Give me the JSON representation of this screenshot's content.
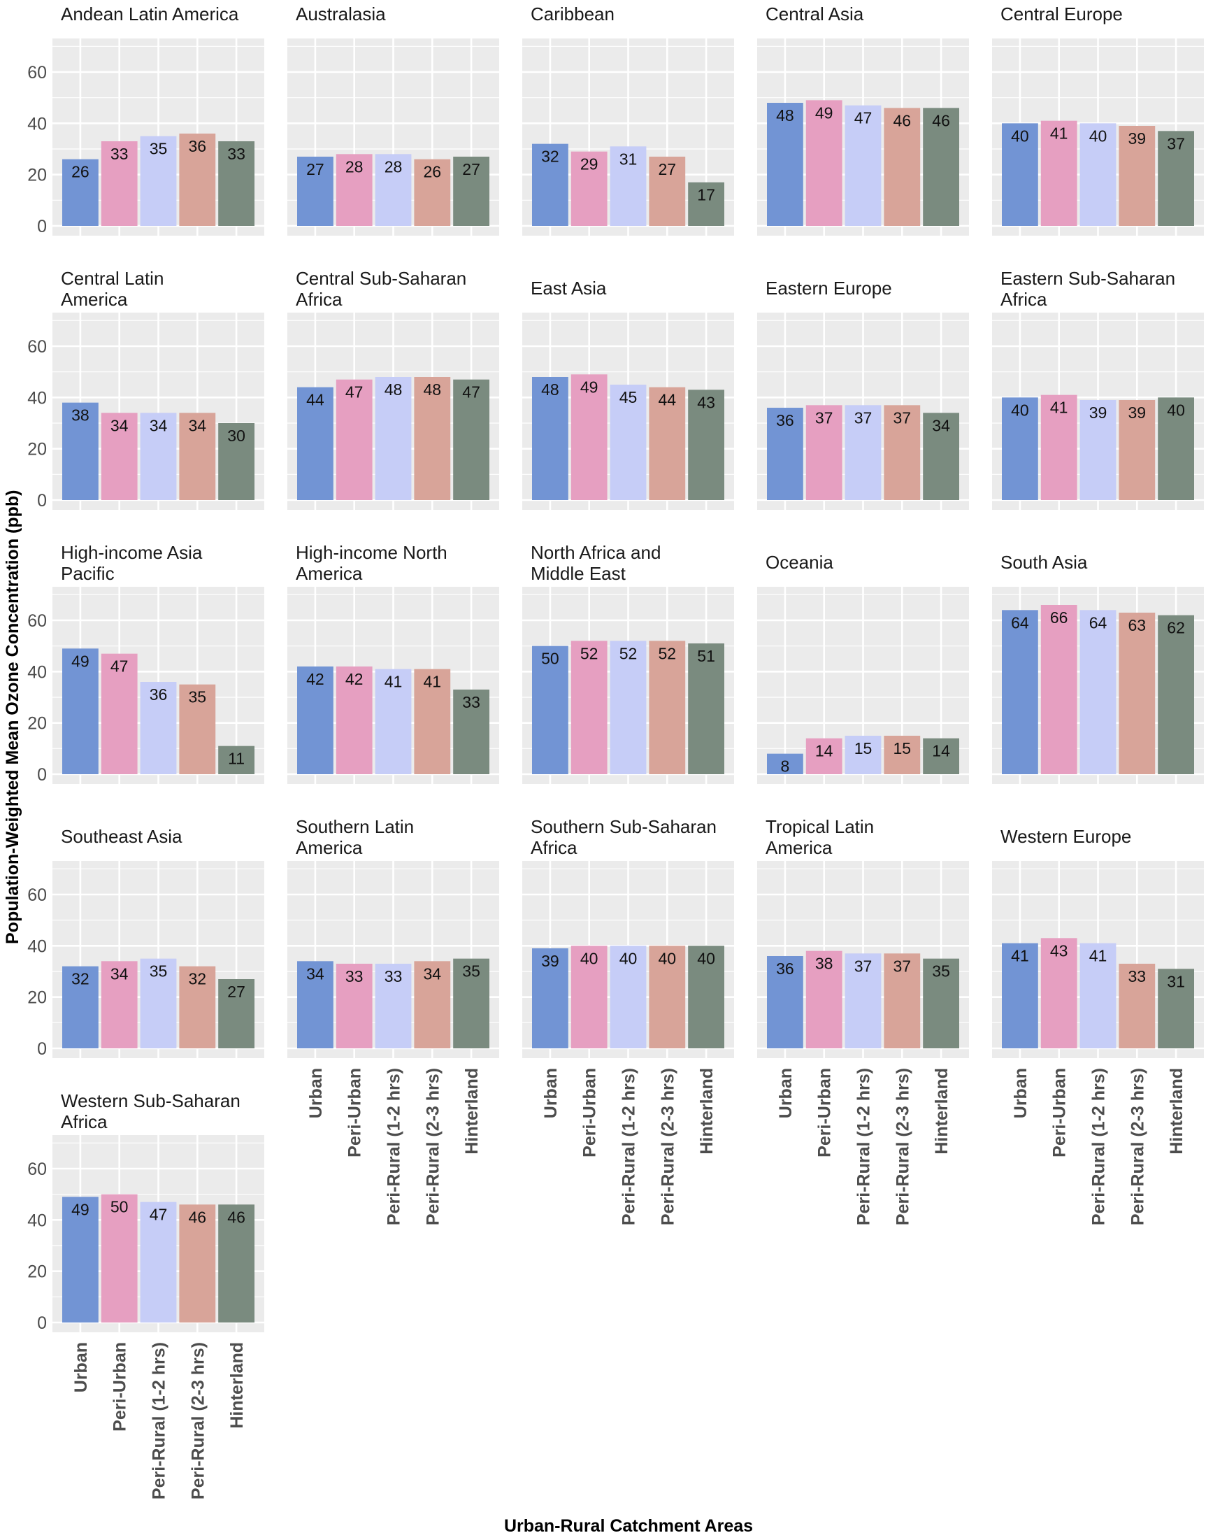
{
  "chart_data": {
    "type": "bar",
    "layout": "facet-grid",
    "title": "",
    "xlabel": "Urban-Rural Catchment Areas",
    "ylabel": "Population-Weighted Mean Ozone Concentration (ppb)",
    "ylim": [
      0,
      70
    ],
    "yticks": [
      0,
      20,
      40,
      60
    ],
    "grid": true,
    "legend": "none",
    "categories": [
      "Urban",
      "Peri-Urban",
      "Peri-Rural (1-2 hrs)",
      "Peri-Rural (2-3 hrs)",
      "Hinterland"
    ],
    "colors": [
      "#7294d4",
      "#e69fc1",
      "#c6cdf7",
      "#d8a499",
      "#7a8b7f"
    ],
    "panels": [
      {
        "title": [
          "Andean Latin America"
        ],
        "values": [
          26,
          33,
          35,
          36,
          33
        ]
      },
      {
        "title": [
          "Australasia"
        ],
        "values": [
          27,
          28,
          28,
          26,
          27
        ]
      },
      {
        "title": [
          "Caribbean"
        ],
        "values": [
          32,
          29,
          31,
          27,
          17
        ]
      },
      {
        "title": [
          "Central Asia"
        ],
        "values": [
          48,
          49,
          47,
          46,
          46
        ]
      },
      {
        "title": [
          "Central Europe"
        ],
        "values": [
          40,
          41,
          40,
          39,
          37
        ]
      },
      {
        "title": [
          "Central Latin",
          "America"
        ],
        "values": [
          38,
          34,
          34,
          34,
          30
        ]
      },
      {
        "title": [
          "Central Sub-Saharan",
          "Africa"
        ],
        "values": [
          44,
          47,
          48,
          48,
          47
        ]
      },
      {
        "title": [
          "East Asia"
        ],
        "values": [
          48,
          49,
          45,
          44,
          43
        ]
      },
      {
        "title": [
          "Eastern Europe"
        ],
        "values": [
          36,
          37,
          37,
          37,
          34
        ]
      },
      {
        "title": [
          "Eastern Sub-Saharan",
          "Africa"
        ],
        "values": [
          40,
          41,
          39,
          39,
          40
        ]
      },
      {
        "title": [
          "High-income Asia",
          "Pacific"
        ],
        "values": [
          49,
          47,
          36,
          35,
          11
        ]
      },
      {
        "title": [
          "High-income North",
          "America"
        ],
        "values": [
          42,
          42,
          41,
          41,
          33
        ]
      },
      {
        "title": [
          "North Africa and",
          "Middle East"
        ],
        "values": [
          50,
          52,
          52,
          52,
          51
        ]
      },
      {
        "title": [
          "Oceania"
        ],
        "values": [
          8,
          14,
          15,
          15,
          14
        ]
      },
      {
        "title": [
          "South Asia"
        ],
        "values": [
          64,
          66,
          64,
          63,
          62
        ]
      },
      {
        "title": [
          "Southeast Asia"
        ],
        "values": [
          32,
          34,
          35,
          32,
          27
        ]
      },
      {
        "title": [
          "Southern Latin",
          "America"
        ],
        "values": [
          34,
          33,
          33,
          34,
          35
        ]
      },
      {
        "title": [
          "Southern Sub-Saharan",
          "Africa"
        ],
        "values": [
          39,
          40,
          40,
          40,
          40
        ]
      },
      {
        "title": [
          "Tropical Latin",
          "America"
        ],
        "values": [
          36,
          38,
          37,
          37,
          35
        ]
      },
      {
        "title": [
          "Western Europe"
        ],
        "values": [
          41,
          43,
          41,
          33,
          31
        ]
      },
      {
        "title": [
          "Western Sub-Saharan",
          "Africa"
        ],
        "values": [
          49,
          50,
          47,
          46,
          46
        ]
      }
    ]
  }
}
